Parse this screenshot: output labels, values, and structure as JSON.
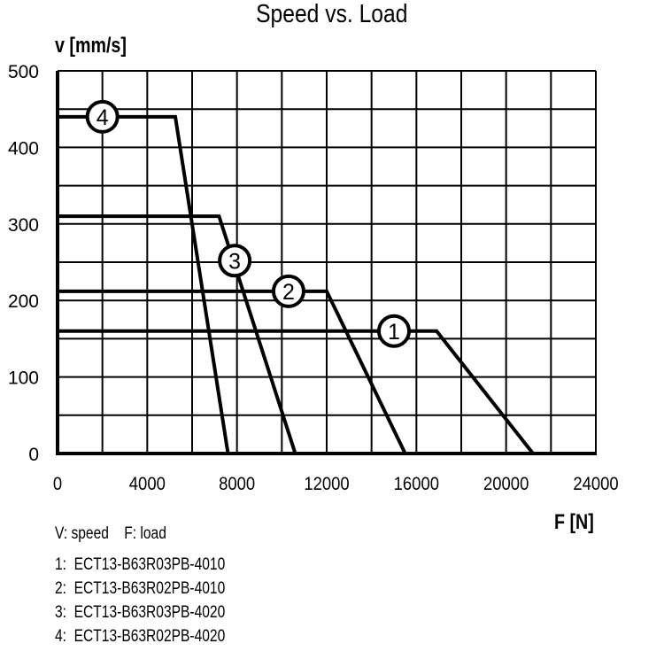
{
  "chart_data": {
    "type": "line",
    "title": "Speed vs. Load",
    "xlabel": "F [N]",
    "ylabel": "v [mm/s]",
    "xlim": [
      0,
      24000
    ],
    "ylim": [
      0,
      500
    ],
    "x_ticks": [
      0,
      4000,
      8000,
      12000,
      16000,
      20000,
      24000
    ],
    "y_ticks": [
      0,
      100,
      200,
      300,
      400,
      500
    ],
    "x_grid_step": 2000,
    "y_grid_step": 50,
    "grid": true,
    "line_color": "#000000",
    "series": [
      {
        "name": "1",
        "points": [
          [
            0,
            160
          ],
          [
            16900,
            160
          ],
          [
            21200,
            0
          ]
        ],
        "label_at": [
          15000,
          160
        ]
      },
      {
        "name": "2",
        "points": [
          [
            0,
            212
          ],
          [
            12000,
            212
          ],
          [
            15500,
            0
          ]
        ],
        "label_at": [
          10300,
          212
        ]
      },
      {
        "name": "3",
        "points": [
          [
            0,
            310
          ],
          [
            7200,
            310
          ],
          [
            10600,
            0
          ]
        ],
        "label_at": [
          7900,
          252
        ]
      },
      {
        "name": "4",
        "points": [
          [
            0,
            440
          ],
          [
            5250,
            440
          ],
          [
            7600,
            0
          ]
        ],
        "label_at": [
          2000,
          440
        ]
      }
    ],
    "notes": {
      "definitions": "V: speed    F: load",
      "items": [
        "1:  ECT13-B63R03PB-4010",
        "2:  ECT13-B63R02PB-4010",
        "3:  ECT13-B63R03PB-4020",
        "4:  ECT13-B63R02PB-4020"
      ]
    }
  }
}
